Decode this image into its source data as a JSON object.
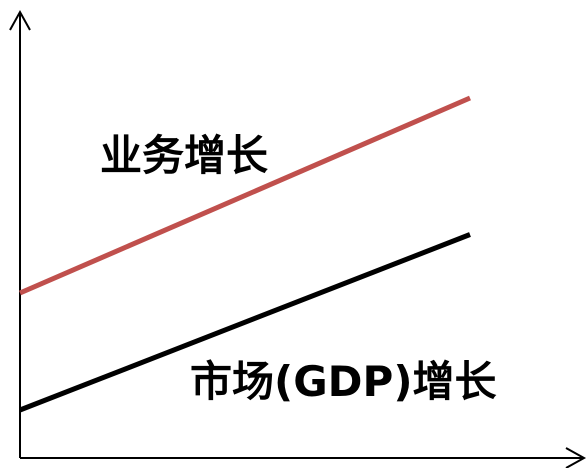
{
  "chart_data": {
    "type": "line",
    "title": "",
    "xlabel": "",
    "ylabel": "",
    "grid": false,
    "axes": {
      "x_arrow": true,
      "y_arrow": true,
      "ticks": false
    },
    "series": [
      {
        "name": "业务增长",
        "color": "#c0504d",
        "x": [
          0,
          1
        ],
        "y": [
          0.3,
          0.8
        ]
      },
      {
        "name": "市场(GDP)增长",
        "color": "#000000",
        "x": [
          0,
          1
        ],
        "y": [
          0.0,
          0.45
        ]
      }
    ],
    "colors": {
      "axis": "#000000"
    }
  }
}
